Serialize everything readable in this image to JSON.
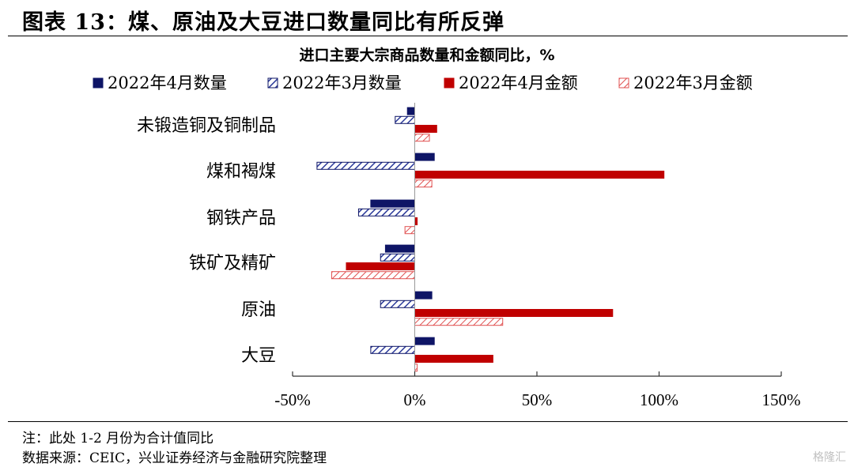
{
  "figure_title": "图表 13：煤、原油及大豆进口数量同比有所反弹",
  "notes": {
    "line1": "注：此处 1-2 月份为合计值同比",
    "line2": "数据来源：CEIC，兴业证券经济与金融研究院整理"
  },
  "watermark": "格隆汇",
  "colors": {
    "navy": "#0e1566",
    "red": "#c00000",
    "hatch_navy": "#2b3a9a",
    "hatch_red": "#e05050"
  },
  "chart_data": {
    "type": "bar",
    "orientation": "horizontal",
    "title": "进口主要大宗商品数量和金额同比，%",
    "categories": [
      "未锻造铜及铜制品",
      "煤和褐煤",
      "钢铁产品",
      "铁矿及精矿",
      "原油",
      "大豆"
    ],
    "series": [
      {
        "name": "2022年4月数量",
        "style": "solid-navy",
        "values": [
          -3,
          8,
          -18,
          -12,
          7,
          8
        ]
      },
      {
        "name": "2022年3月数量",
        "style": "hatched-navy",
        "values": [
          -8,
          -40,
          -23,
          -14,
          -14,
          -18
        ]
      },
      {
        "name": "2022年4月金额",
        "style": "solid-red",
        "values": [
          9,
          102,
          1,
          -28,
          81,
          32
        ]
      },
      {
        "name": "2022年3月金额",
        "style": "hatched-red",
        "values": [
          6,
          7,
          -4,
          -34,
          36,
          1
        ]
      }
    ],
    "xlim": [
      -50,
      150
    ],
    "xticks": [
      "-50%",
      "0%",
      "50%",
      "100%",
      "150%"
    ],
    "xtick_values": [
      -50,
      0,
      50,
      100,
      150
    ],
    "legend": "top",
    "grid": false
  }
}
